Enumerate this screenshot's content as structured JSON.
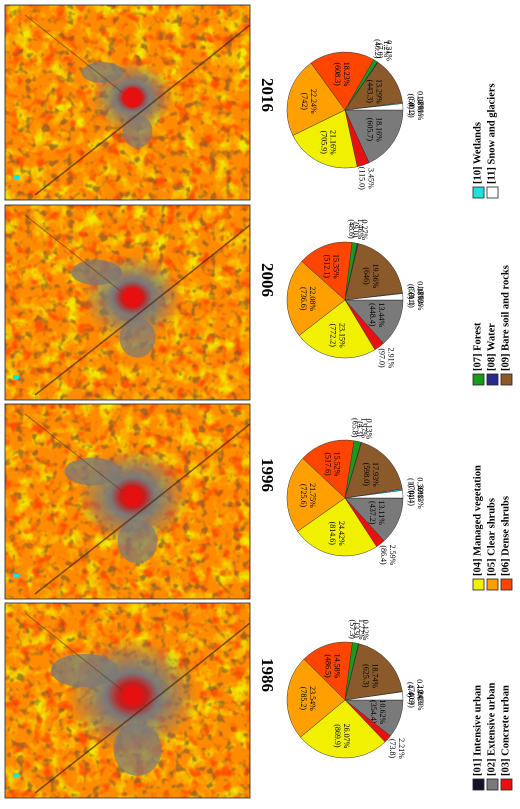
{
  "classes": [
    {
      "code": "[01]",
      "name": "Intensive urban",
      "color": "#141428"
    },
    {
      "code": "[02]",
      "name": "Extensive urban",
      "color": "#7a7a7a"
    },
    {
      "code": "[03]",
      "name": "Concrete urban",
      "color": "#e81010"
    },
    {
      "code": "[04]",
      "name": "Managed vegetation",
      "color": "#f0f000"
    },
    {
      "code": "[05]",
      "name": "Clear shrubs",
      "color": "#ffa000"
    },
    {
      "code": "[06]",
      "name": "Dense shrubs",
      "color": "#ff4500"
    },
    {
      "code": "[07]",
      "name": "Forest",
      "color": "#1a9a1a"
    },
    {
      "code": "[08]",
      "name": "Water",
      "color": "#2a2a8a"
    },
    {
      "code": "[09]",
      "name": "Bare soil and rocks",
      "color": "#8b5a2b"
    },
    {
      "code": "[10]",
      "name": "Wetlands",
      "color": "#22e0e0"
    },
    {
      "code": "[11]",
      "name": "Snow and glaciers",
      "color": "#ffffff"
    }
  ],
  "chart_data": [
    {
      "type": "pie",
      "title": "1986",
      "slices": [
        {
          "class": "[01]",
          "pct": 0.03,
          "pct_label": "0.03%",
          "area_label": "(0.9)"
        },
        {
          "class": "[02]",
          "pct": 10.62,
          "pct_label": "10.62%",
          "area_label": "(354.4)"
        },
        {
          "class": "[03]",
          "pct": 2.21,
          "pct_label": "2.21%",
          "area_label": "(73.8)"
        },
        {
          "class": "[04]",
          "pct": 26.07,
          "pct_label": "26.07%",
          "area_label": "(869.9)"
        },
        {
          "class": "[05]",
          "pct": 23.54,
          "pct_label": "23.54%",
          "area_label": "(785.2)"
        },
        {
          "class": "[06]",
          "pct": 14.58,
          "pct_label": "14.58%",
          "area_label": "(486.5)"
        },
        {
          "class": "[07]",
          "pct": 1.72,
          "pct_label": "1.72%",
          "area_label": "(57.3)"
        },
        {
          "class": "[08]",
          "pct": 0.12,
          "pct_label": "0.12%",
          "area_label": "(3.9)"
        },
        {
          "class": "[09]",
          "pct": 18.74,
          "pct_label": "18.74%",
          "area_label": "(625.3)"
        },
        {
          "class": "[10]",
          "pct": 0.13,
          "pct_label": "0.13%",
          "area_label": "(4.4)"
        },
        {
          "class": "[11]",
          "pct": 2.24,
          "pct_label": "2.24%",
          "area_label": "(74.6)"
        }
      ]
    },
    {
      "type": "pie",
      "title": "1996",
      "slices": [
        {
          "class": "[01]",
          "pct": 0.13,
          "pct_label": "0.13%",
          "area_label": "(4.4)"
        },
        {
          "class": "[02]",
          "pct": 13.11,
          "pct_label": "13.11%",
          "area_label": "(437.2)"
        },
        {
          "class": "[03]",
          "pct": 2.59,
          "pct_label": "2.59%",
          "area_label": "(86.4)"
        },
        {
          "class": "[04]",
          "pct": 24.42,
          "pct_label": "24.42%",
          "area_label": "(814.6)"
        },
        {
          "class": "[05]",
          "pct": 21.75,
          "pct_label": "21.75%",
          "area_label": "(725.6)"
        },
        {
          "class": "[06]",
          "pct": 15.52,
          "pct_label": "15.52%",
          "area_label": "(517.6)"
        },
        {
          "class": "[07]",
          "pct": 1.97,
          "pct_label": "1.97%",
          "area_label": "(65.8)"
        },
        {
          "class": "[08]",
          "pct": 0.13,
          "pct_label": "0.13%",
          "area_label": "(4.3)"
        },
        {
          "class": "[09]",
          "pct": 17.93,
          "pct_label": "17.93%",
          "area_label": "(598.0)"
        },
        {
          "class": "[10]",
          "pct": 0.36,
          "pct_label": "0.36%",
          "area_label": "(11.9)"
        },
        {
          "class": "[11]",
          "pct": 2.1,
          "pct_label": "2.1%",
          "area_label": "(70.1)"
        }
      ]
    },
    {
      "type": "pie",
      "title": "2006",
      "slices": [
        {
          "class": "[01]",
          "pct": 0.03,
          "pct_label": "0.03%",
          "area_label": "(1.1)"
        },
        {
          "class": "[02]",
          "pct": 13.44,
          "pct_label": "13.44%",
          "area_label": "(448.4)"
        },
        {
          "class": "[03]",
          "pct": 2.91,
          "pct_label": "2.91%",
          "area_label": "(97.0)"
        },
        {
          "class": "[04]",
          "pct": 23.15,
          "pct_label": "23.15%",
          "area_label": "(772.2)"
        },
        {
          "class": "[05]",
          "pct": 22.08,
          "pct_label": "22.08%",
          "area_label": "(736.6)"
        },
        {
          "class": "[06]",
          "pct": 15.35,
          "pct_label": "15.35%",
          "area_label": "(512.1)"
        },
        {
          "class": "[07]",
          "pct": 1.46,
          "pct_label": "1.46%",
          "area_label": "(48.6)"
        },
        {
          "class": "[08]",
          "pct": 0.27,
          "pct_label": "0.27%",
          "area_label": "(9.0)"
        },
        {
          "class": "[09]",
          "pct": 19.36,
          "pct_label": "19.36%",
          "area_label": "(646)"
        },
        {
          "class": "[10]",
          "pct": 0.18,
          "pct_label": "0.18%",
          "area_label": "(6.0)"
        },
        {
          "class": "[11]",
          "pct": 1.77,
          "pct_label": "1.77%",
          "area_label": "(59.1)"
        }
      ]
    },
    {
      "type": "pie",
      "title": "2016",
      "slices": [
        {
          "class": "[01]",
          "pct": 0.01,
          "pct_label": "0.01%",
          "area_label": "(0.2)"
        },
        {
          "class": "[02]",
          "pct": 18.16,
          "pct_label": "18.16%",
          "area_label": "(605.7)"
        },
        {
          "class": "[03]",
          "pct": 3.45,
          "pct_label": "3.45%",
          "area_label": "(115.0)"
        },
        {
          "class": "[04]",
          "pct": 21.16,
          "pct_label": "21.16%",
          "area_label": "(705.9)"
        },
        {
          "class": "[05]",
          "pct": 22.24,
          "pct_label": "22.24%",
          "area_label": "(742)"
        },
        {
          "class": "[06]",
          "pct": 18.23,
          "pct_label": "18.23%",
          "area_label": "(608.3)"
        },
        {
          "class": "[07]",
          "pct": 1.2,
          "pct_label": "1.2%",
          "area_label": "(40.2)"
        },
        {
          "class": "[08]",
          "pct": 0.21,
          "pct_label": "0.21%",
          "area_label": "(7.0)"
        },
        {
          "class": "[09]",
          "pct": 13.29,
          "pct_label": "13.29%",
          "area_label": "(443.3)"
        },
        {
          "class": "[10]",
          "pct": 0.28,
          "pct_label": "0.28%",
          "area_label": "(9.4)"
        },
        {
          "class": "[11]",
          "pct": 1.77,
          "pct_label": "1.77%",
          "area_label": "(59.1)"
        }
      ]
    }
  ]
}
